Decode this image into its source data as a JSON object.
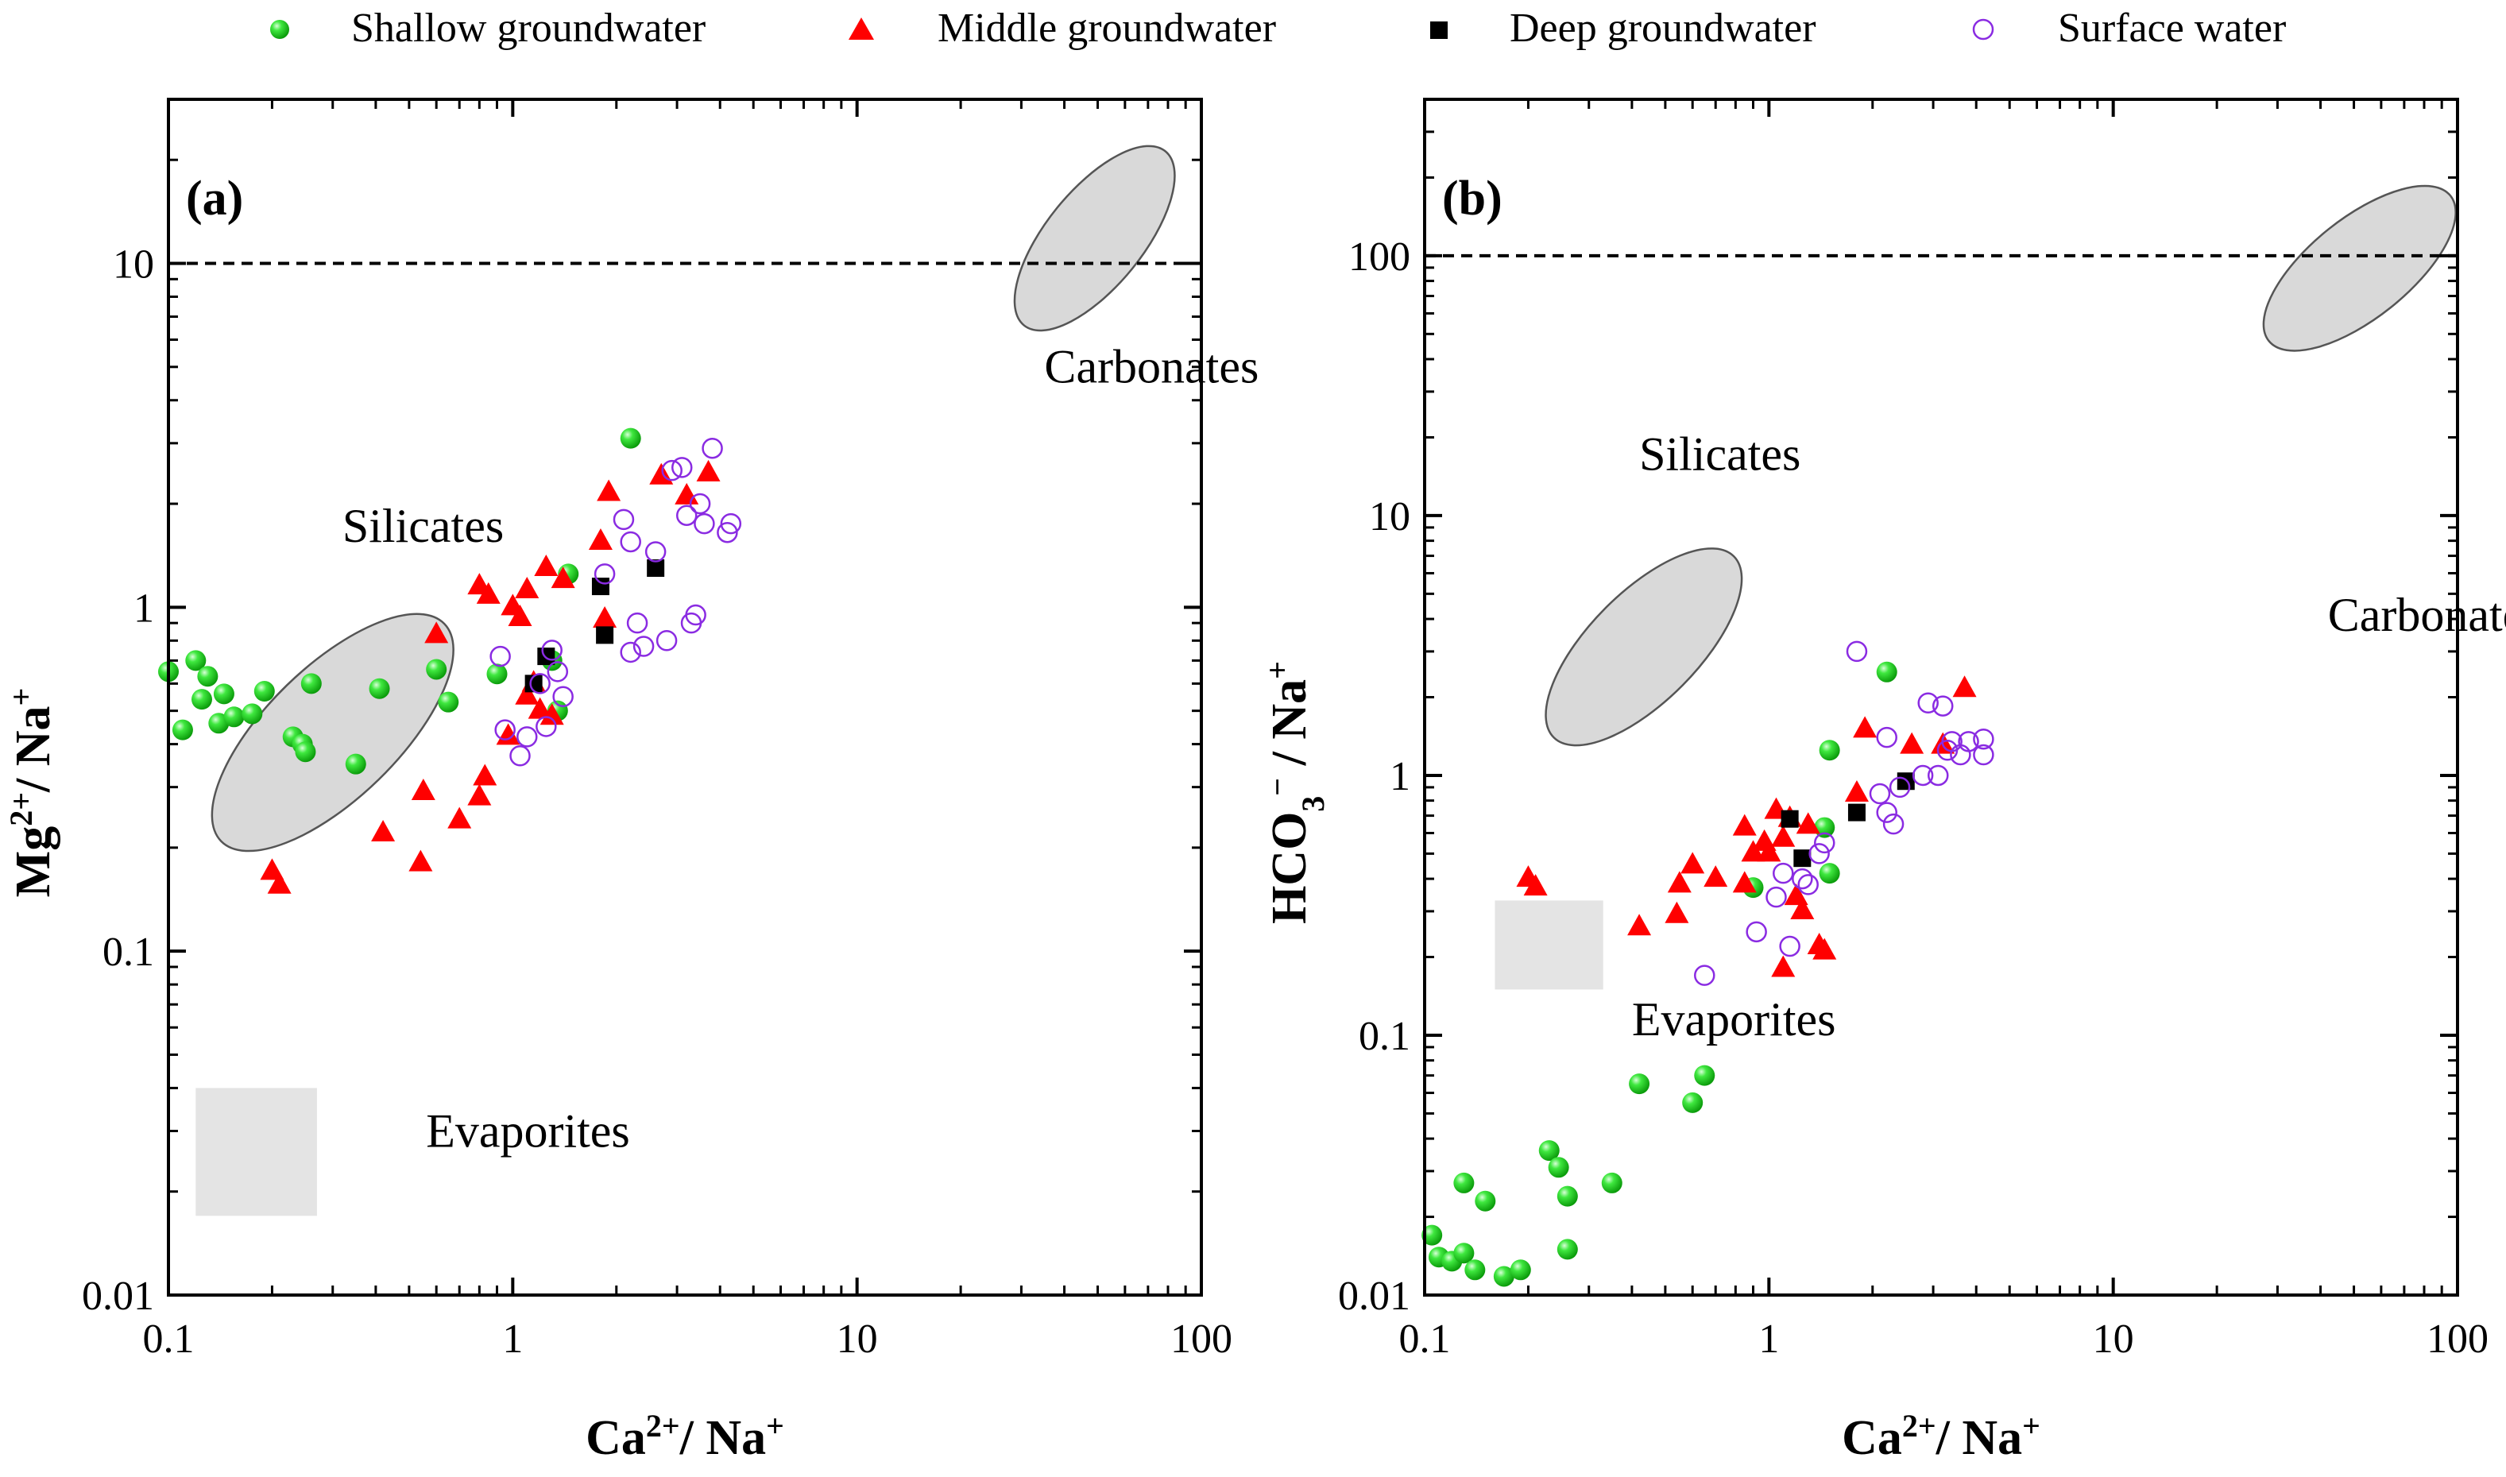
{
  "legend": {
    "entries": [
      {
        "name": "Shallow groundwater",
        "marker": "sphere",
        "color": "#22dd22"
      },
      {
        "name": "Middle groundwater",
        "marker": "triangle",
        "color": "#ff0000"
      },
      {
        "name": "Deep groundwater",
        "marker": "square",
        "color": "#000000"
      },
      {
        "name": "Surface water",
        "marker": "open-circle",
        "color": "#8a2be2"
      }
    ]
  },
  "chart_data": [
    {
      "type": "scatter",
      "panel_label": "(a)",
      "xscale": "log",
      "yscale": "log",
      "xlim": [
        0.1,
        100
      ],
      "ylim": [
        0.01,
        30
      ],
      "xlabel": {
        "base": "Ca",
        "sup1": "2+",
        "mid": "/ Na",
        "sup2": "+"
      },
      "ylabel": {
        "base": "Mg",
        "sup1": "2+",
        "mid": "/ Na",
        "sup2": "+"
      },
      "xticks": [
        0.1,
        1,
        10,
        100
      ],
      "xtick_labels": [
        "0.1",
        "1",
        "10",
        "100"
      ],
      "yticks": [
        0.01,
        0.1,
        1,
        10
      ],
      "ytick_labels": [
        "0.01",
        "0.1",
        "1",
        "10"
      ],
      "reference_line": {
        "y": 10,
        "style": "dashed"
      },
      "regions": [
        {
          "label": "Carbonates",
          "shape": "ellipse",
          "from": [
            32,
            7
          ],
          "to": [
            75,
            20
          ],
          "label_at": [
            35,
            4.5
          ]
        },
        {
          "label": "Silicates",
          "shape": "ellipse",
          "from": [
            0.15,
            0.22
          ],
          "to": [
            0.6,
            0.85
          ],
          "label_at": [
            0.32,
            1.55
          ]
        },
        {
          "label": "Evaporites",
          "shape": "rect",
          "from": [
            0.12,
            0.017
          ],
          "to": [
            0.27,
            0.04
          ],
          "label_at": [
            0.56,
            0.027
          ]
        }
      ],
      "series": [
        {
          "name": "Shallow groundwater",
          "points": [
            [
              0.1,
              0.65
            ],
            [
              0.11,
              0.44
            ],
            [
              0.12,
              0.7
            ],
            [
              0.125,
              0.54
            ],
            [
              0.13,
              0.63
            ],
            [
              0.14,
              0.46
            ],
            [
              0.145,
              0.56
            ],
            [
              0.155,
              0.48
            ],
            [
              0.175,
              0.49
            ],
            [
              0.19,
              0.57
            ],
            [
              0.23,
              0.42
            ],
            [
              0.245,
              0.4
            ],
            [
              0.25,
              0.38
            ],
            [
              0.26,
              0.6
            ],
            [
              0.35,
              0.35
            ],
            [
              0.41,
              0.58
            ],
            [
              0.6,
              0.66
            ],
            [
              0.65,
              0.53
            ],
            [
              0.9,
              0.64
            ],
            [
              1.3,
              0.7
            ],
            [
              1.35,
              0.5
            ],
            [
              1.45,
              1.25
            ],
            [
              2.2,
              3.1
            ]
          ]
        },
        {
          "name": "Middle groundwater",
          "points": [
            [
              0.2,
              0.17
            ],
            [
              0.21,
              0.155
            ],
            [
              0.42,
              0.22
            ],
            [
              0.54,
              0.18
            ],
            [
              0.55,
              0.29
            ],
            [
              0.6,
              0.83
            ],
            [
              0.7,
              0.24
            ],
            [
              0.8,
              0.28
            ],
            [
              0.83,
              0.32
            ],
            [
              0.8,
              1.15
            ],
            [
              0.85,
              1.08
            ],
            [
              0.97,
              0.42
            ],
            [
              1.0,
              1.0
            ],
            [
              1.05,
              0.93
            ],
            [
              1.1,
              0.55
            ],
            [
              1.1,
              1.12
            ],
            [
              1.15,
              0.6
            ],
            [
              1.2,
              0.5
            ],
            [
              1.25,
              1.3
            ],
            [
              1.3,
              0.48
            ],
            [
              1.4,
              1.2
            ],
            [
              1.8,
              1.55
            ],
            [
              1.85,
              0.92
            ],
            [
              1.9,
              2.15
            ],
            [
              2.7,
              2.4
            ],
            [
              3.2,
              2.1
            ],
            [
              3.7,
              2.45
            ]
          ]
        },
        {
          "name": "Deep groundwater",
          "points": [
            [
              1.15,
              0.6
            ],
            [
              1.25,
              0.72
            ],
            [
              1.8,
              1.15
            ],
            [
              1.85,
              0.83
            ],
            [
              2.6,
              1.3
            ]
          ]
        },
        {
          "name": "Surface water",
          "points": [
            [
              0.92,
              0.72
            ],
            [
              0.95,
              0.44
            ],
            [
              1.05,
              0.37
            ],
            [
              1.1,
              0.42
            ],
            [
              1.2,
              0.6
            ],
            [
              1.25,
              0.45
            ],
            [
              1.3,
              0.75
            ],
            [
              1.35,
              0.65
            ],
            [
              1.4,
              0.55
            ],
            [
              1.85,
              1.25
            ],
            [
              2.1,
              1.8
            ],
            [
              2.2,
              1.55
            ],
            [
              2.3,
              0.9
            ],
            [
              2.2,
              0.74
            ],
            [
              2.4,
              0.77
            ],
            [
              2.6,
              1.45
            ],
            [
              2.8,
              0.8
            ],
            [
              2.9,
              2.5
            ],
            [
              3.1,
              2.55
            ],
            [
              3.2,
              1.85
            ],
            [
              3.3,
              0.9
            ],
            [
              3.4,
              0.95
            ],
            [
              3.5,
              2.0
            ],
            [
              3.6,
              1.75
            ],
            [
              3.8,
              2.9
            ],
            [
              4.2,
              1.65
            ],
            [
              4.3,
              1.75
            ]
          ]
        }
      ]
    },
    {
      "type": "scatter",
      "panel_label": "(b)",
      "xscale": "log",
      "yscale": "log",
      "xlim": [
        0.1,
        100
      ],
      "ylim": [
        0.01,
        400
      ],
      "xlabel": {
        "base": "Ca",
        "sup1": "2+",
        "mid": "/ Na",
        "sup2": "+"
      },
      "ylabel": {
        "base": "HCO",
        "sub": "3",
        "sup1": "−",
        "mid": " / Na",
        "sup2": "+"
      },
      "xticks": [
        0.1,
        1,
        10,
        100
      ],
      "xtick_labels": [
        "0.1",
        "1",
        "10",
        "100"
      ],
      "yticks": [
        0.01,
        0.1,
        1,
        10,
        100
      ],
      "ytick_labels": [
        "0.01",
        "0.1",
        "1",
        "10",
        "100"
      ],
      "reference_line": {
        "y": 100,
        "style": "dashed"
      },
      "regions": [
        {
          "label": "Carbonates",
          "shape": "ellipse",
          "from": [
            30,
            50
          ],
          "to": [
            90,
            160
          ],
          "label_at": [
            42,
            3.6
          ]
        },
        {
          "label": "Silicates",
          "shape": "ellipse",
          "from": [
            0.25,
            1.5
          ],
          "to": [
            0.75,
            6.5
          ],
          "label_at": [
            0.42,
            15
          ]
        },
        {
          "label": "Evaporites",
          "shape": "rect",
          "from": [
            0.16,
            0.15
          ],
          "to": [
            0.33,
            0.33
          ],
          "label_at": [
            0.4,
            0.1
          ]
        }
      ],
      "series": [
        {
          "name": "Shallow groundwater",
          "points": [
            [
              0.105,
              0.017
            ],
            [
              0.11,
              0.014
            ],
            [
              0.12,
              0.0135
            ],
            [
              0.13,
              0.027
            ],
            [
              0.13,
              0.0145
            ],
            [
              0.14,
              0.0125
            ],
            [
              0.15,
              0.023
            ],
            [
              0.17,
              0.0118
            ],
            [
              0.19,
              0.0125
            ],
            [
              0.23,
              0.036
            ],
            [
              0.245,
              0.031
            ],
            [
              0.26,
              0.024
            ],
            [
              0.26,
              0.015
            ],
            [
              0.35,
              0.027
            ],
            [
              0.42,
              0.065
            ],
            [
              0.6,
              0.055
            ],
            [
              0.65,
              0.07
            ],
            [
              0.9,
              0.37
            ],
            [
              1.45,
              0.63
            ],
            [
              1.5,
              0.42
            ],
            [
              1.5,
              1.25
            ],
            [
              2.2,
              2.5
            ]
          ]
        },
        {
          "name": "Middle groundwater",
          "points": [
            [
              0.2,
              0.4
            ],
            [
              0.21,
              0.37
            ],
            [
              0.42,
              0.26
            ],
            [
              0.54,
              0.29
            ],
            [
              0.55,
              0.38
            ],
            [
              0.6,
              0.45
            ],
            [
              0.7,
              0.4
            ],
            [
              0.85,
              0.38
            ],
            [
              0.85,
              0.63
            ],
            [
              0.9,
              0.5
            ],
            [
              0.97,
              0.55
            ],
            [
              1.0,
              0.5
            ],
            [
              1.05,
              0.73
            ],
            [
              1.1,
              0.57
            ],
            [
              1.1,
              0.18
            ],
            [
              1.15,
              0.68
            ],
            [
              1.2,
              0.34
            ],
            [
              1.25,
              0.3
            ],
            [
              1.3,
              0.64
            ],
            [
              1.4,
              0.22
            ],
            [
              1.45,
              0.21
            ],
            [
              1.8,
              0.85
            ],
            [
              1.9,
              1.5
            ],
            [
              2.6,
              1.3
            ],
            [
              3.2,
              1.3
            ],
            [
              3.7,
              2.15
            ]
          ]
        },
        {
          "name": "Deep groundwater",
          "points": [
            [
              1.15,
              0.68
            ],
            [
              1.25,
              0.48
            ],
            [
              1.8,
              0.72
            ],
            [
              2.5,
              0.95
            ]
          ]
        },
        {
          "name": "Surface water",
          "points": [
            [
              0.65,
              0.17
            ],
            [
              0.92,
              0.25
            ],
            [
              1.05,
              0.34
            ],
            [
              1.1,
              0.42
            ],
            [
              1.15,
              0.22
            ],
            [
              1.25,
              0.4
            ],
            [
              1.3,
              0.38
            ],
            [
              1.4,
              0.5
            ],
            [
              1.45,
              0.55
            ],
            [
              1.8,
              3.0
            ],
            [
              2.1,
              0.85
            ],
            [
              2.2,
              1.4
            ],
            [
              2.2,
              0.72
            ],
            [
              2.3,
              0.65
            ],
            [
              2.4,
              0.9
            ],
            [
              2.8,
              1.0
            ],
            [
              2.9,
              1.9
            ],
            [
              3.1,
              1.0
            ],
            [
              3.2,
              1.85
            ],
            [
              3.3,
              1.25
            ],
            [
              3.4,
              1.35
            ],
            [
              3.6,
              1.2
            ],
            [
              3.8,
              1.35
            ],
            [
              4.2,
              1.2
            ],
            [
              4.2,
              1.38
            ]
          ]
        }
      ]
    }
  ]
}
